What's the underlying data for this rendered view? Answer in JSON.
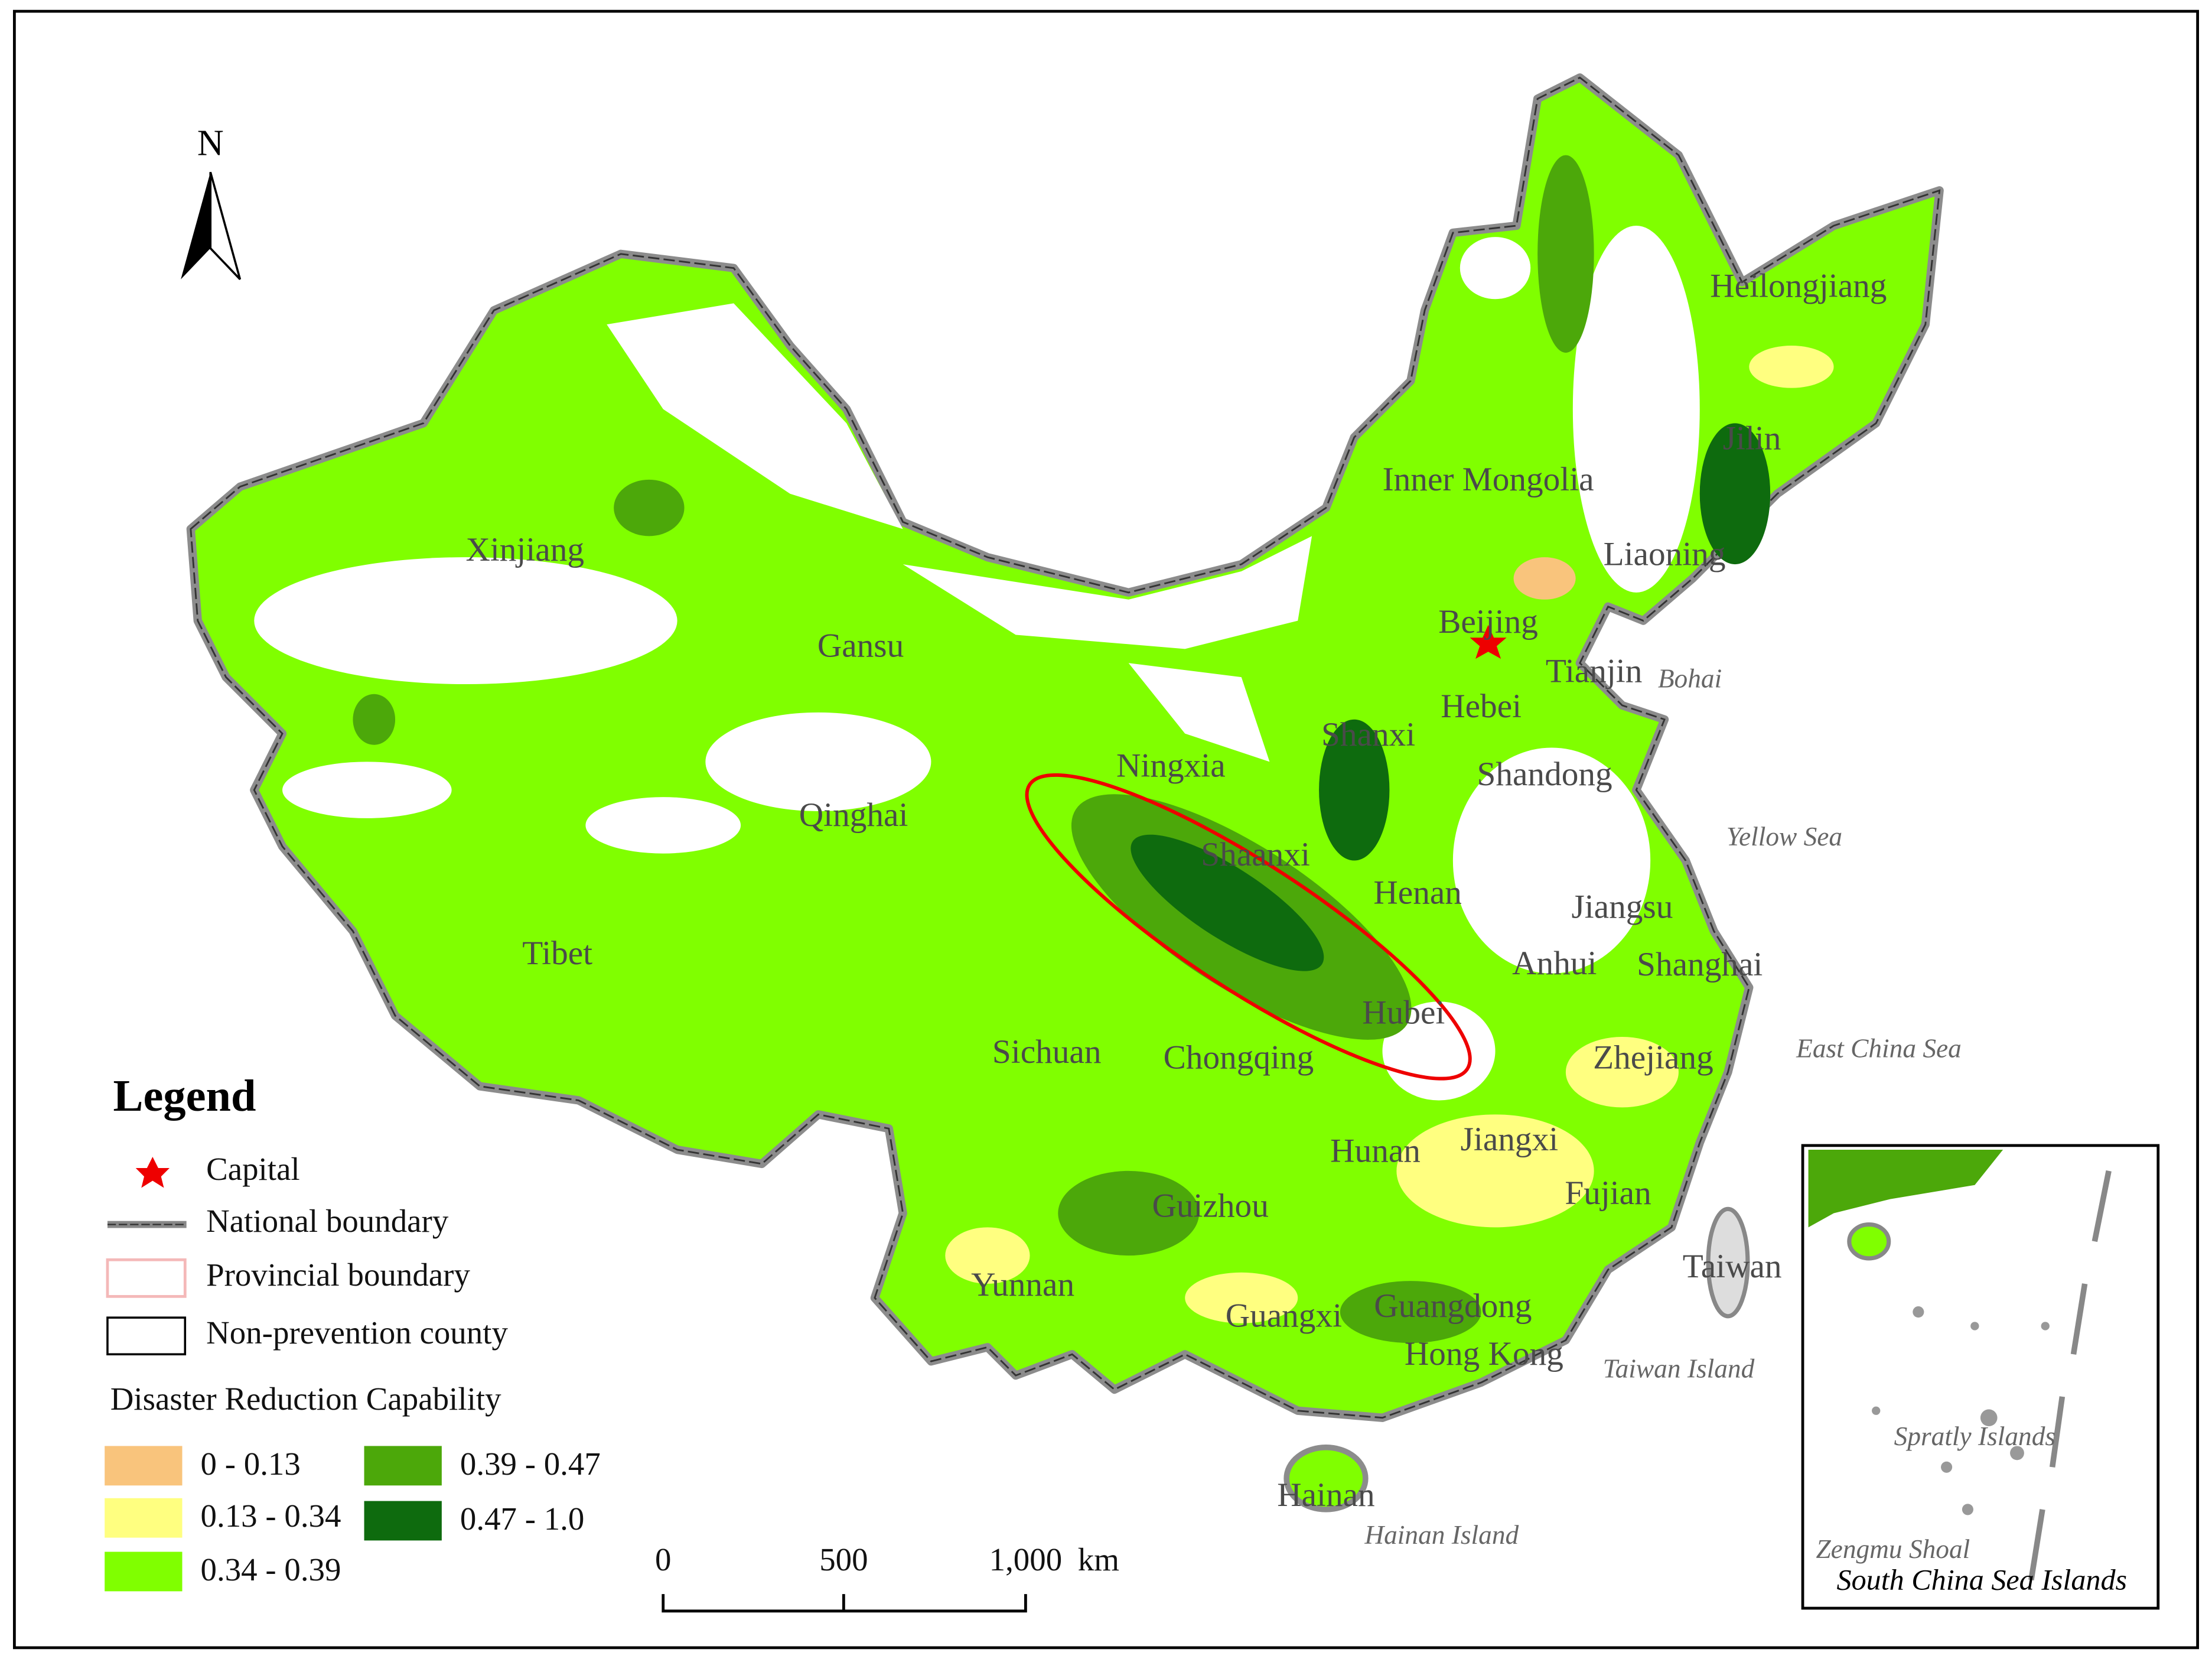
{
  "compass": "N",
  "provinces": [
    "Heilongjiang",
    "Jilin",
    "Liaoning",
    "Inner Mongolia",
    "Beijing",
    "Tianjin",
    "Hebei",
    "Shanxi",
    "Shandong",
    "Ningxia",
    "Gansu",
    "Xinjiang",
    "Qinghai",
    "Tibet",
    "Shaanxi",
    "Henan",
    "Jiangsu",
    "Anhui",
    "Shanghai",
    "Hubei",
    "Sichuan",
    "Chongqing",
    "Zhejiang",
    "Hunan",
    "Jiangxi",
    "Fujian",
    "Guizhou",
    "Taiwan",
    "Yunnan",
    "Guangxi",
    "Guangdong",
    "Hong Kong",
    "Hainan"
  ],
  "seas": [
    "Bohai",
    "Yellow Sea",
    "East China Sea",
    "Taiwan Island",
    "Hainan Island"
  ],
  "legend": {
    "title": "Legend",
    "items": [
      "Capital",
      "National boundary",
      "Provincial boundary",
      "Non-prevention county"
    ],
    "scale_title": "Disaster Reduction Capability",
    "classes": [
      {
        "label": "0 - 0.13",
        "color": "#f9c47c"
      },
      {
        "label": "0.13 - 0.34",
        "color": "#ffff80"
      },
      {
        "label": "0.34 - 0.39",
        "color": "#80ff00"
      },
      {
        "label": "0.39 - 0.47",
        "color": "#4ca80a"
      },
      {
        "label": "0.47 - 1.0",
        "color": "#0e6b0e"
      }
    ]
  },
  "scale_bar": {
    "labels": [
      "0",
      "500",
      "1,000"
    ],
    "unit": "km"
  },
  "inset": {
    "title": "South China Sea Islands",
    "labels": [
      "Spratly Islands",
      "Zengmu Shoal"
    ]
  }
}
